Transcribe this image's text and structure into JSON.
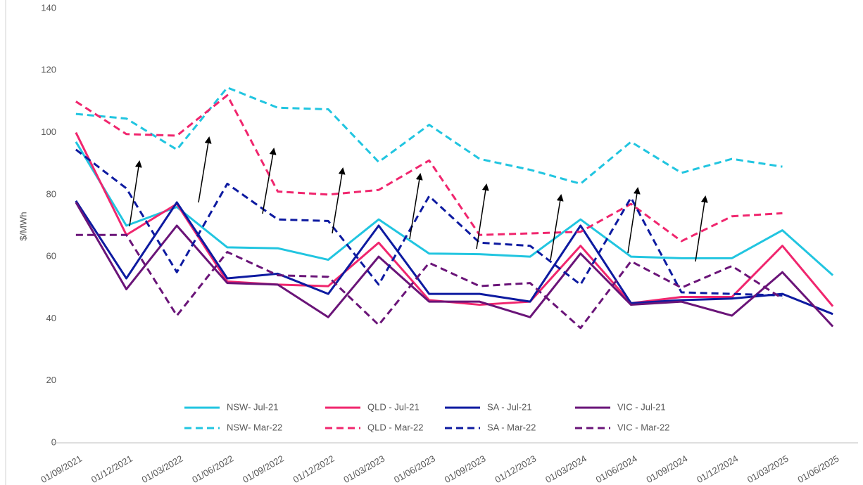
{
  "chart_data": {
    "type": "line",
    "y_label": "$/MWh",
    "categories": [
      "01/09/2021",
      "01/12/2021",
      "01/03/2022",
      "01/06/2022",
      "01/09/2022",
      "01/12/2022",
      "01/03/2023",
      "01/06/2023",
      "01/09/2023",
      "01/12/2023",
      "01/03/2024",
      "01/06/2024",
      "01/09/2024",
      "01/12/2024",
      "01/03/2025",
      "01/06/2025"
    ],
    "ylim": [
      0,
      140
    ],
    "yticks": [
      0,
      20,
      40,
      60,
      80,
      100,
      120,
      140
    ],
    "grid": false,
    "legend": "bottom",
    "series": [
      {
        "name": "NSW- Jul-21",
        "color": "#21c5e0",
        "dashed": false,
        "values": [
          97,
          70,
          76,
          63,
          62.7,
          59,
          72,
          61,
          60.8,
          60,
          72,
          60,
          59.5,
          59.5,
          68.5,
          54
        ]
      },
      {
        "name": "QLD - Jul-21",
        "color": "#f0266e",
        "dashed": false,
        "values": [
          100,
          67,
          77,
          52,
          51,
          50.5,
          64.5,
          46,
          44.5,
          45.5,
          63.5,
          45,
          47,
          47,
          63.5,
          44
        ]
      },
      {
        "name": "SA - Jul-21",
        "color": "#0d1aa0",
        "dashed": false,
        "values": [
          78,
          53,
          77.5,
          53,
          54.5,
          48,
          70,
          48,
          48,
          45.5,
          70,
          45,
          46,
          46.5,
          48,
          41.5
        ]
      },
      {
        "name": "VIC - Jul-21",
        "color": "#6a1478",
        "dashed": false,
        "values": [
          77.5,
          49.5,
          70,
          51.5,
          51,
          40.5,
          60,
          45.5,
          45.5,
          40.5,
          61,
          44.5,
          45.5,
          41,
          55,
          37.5
        ]
      },
      {
        "name": "NSW- Mar-22",
        "color": "#21c5e0",
        "dashed": true,
        "values": [
          106,
          104.5,
          94.5,
          114.5,
          108,
          107.5,
          90.5,
          102.5,
          91.5,
          88,
          83.5,
          97,
          87,
          91.5,
          89,
          null
        ]
      },
      {
        "name": "QLD - Mar-22",
        "color": "#f0266e",
        "dashed": true,
        "values": [
          110,
          99.5,
          99,
          112,
          81,
          80,
          81.5,
          91,
          67,
          67.5,
          68,
          77,
          65,
          73,
          74,
          null
        ]
      },
      {
        "name": "SA - Mar-22",
        "color": "#0d1aa0",
        "dashed": true,
        "values": [
          94.5,
          82,
          55,
          83.5,
          72,
          71.5,
          51,
          79.5,
          64.5,
          63.5,
          51,
          79,
          48.5,
          48,
          47.5,
          null
        ]
      },
      {
        "name": "VIC - Mar-22",
        "color": "#6a1478",
        "dashed": true,
        "values": [
          67,
          67,
          41,
          61.5,
          54,
          53.5,
          38,
          58,
          50.5,
          51.5,
          37,
          58.5,
          50,
          57,
          46.5,
          null
        ]
      }
    ]
  }
}
